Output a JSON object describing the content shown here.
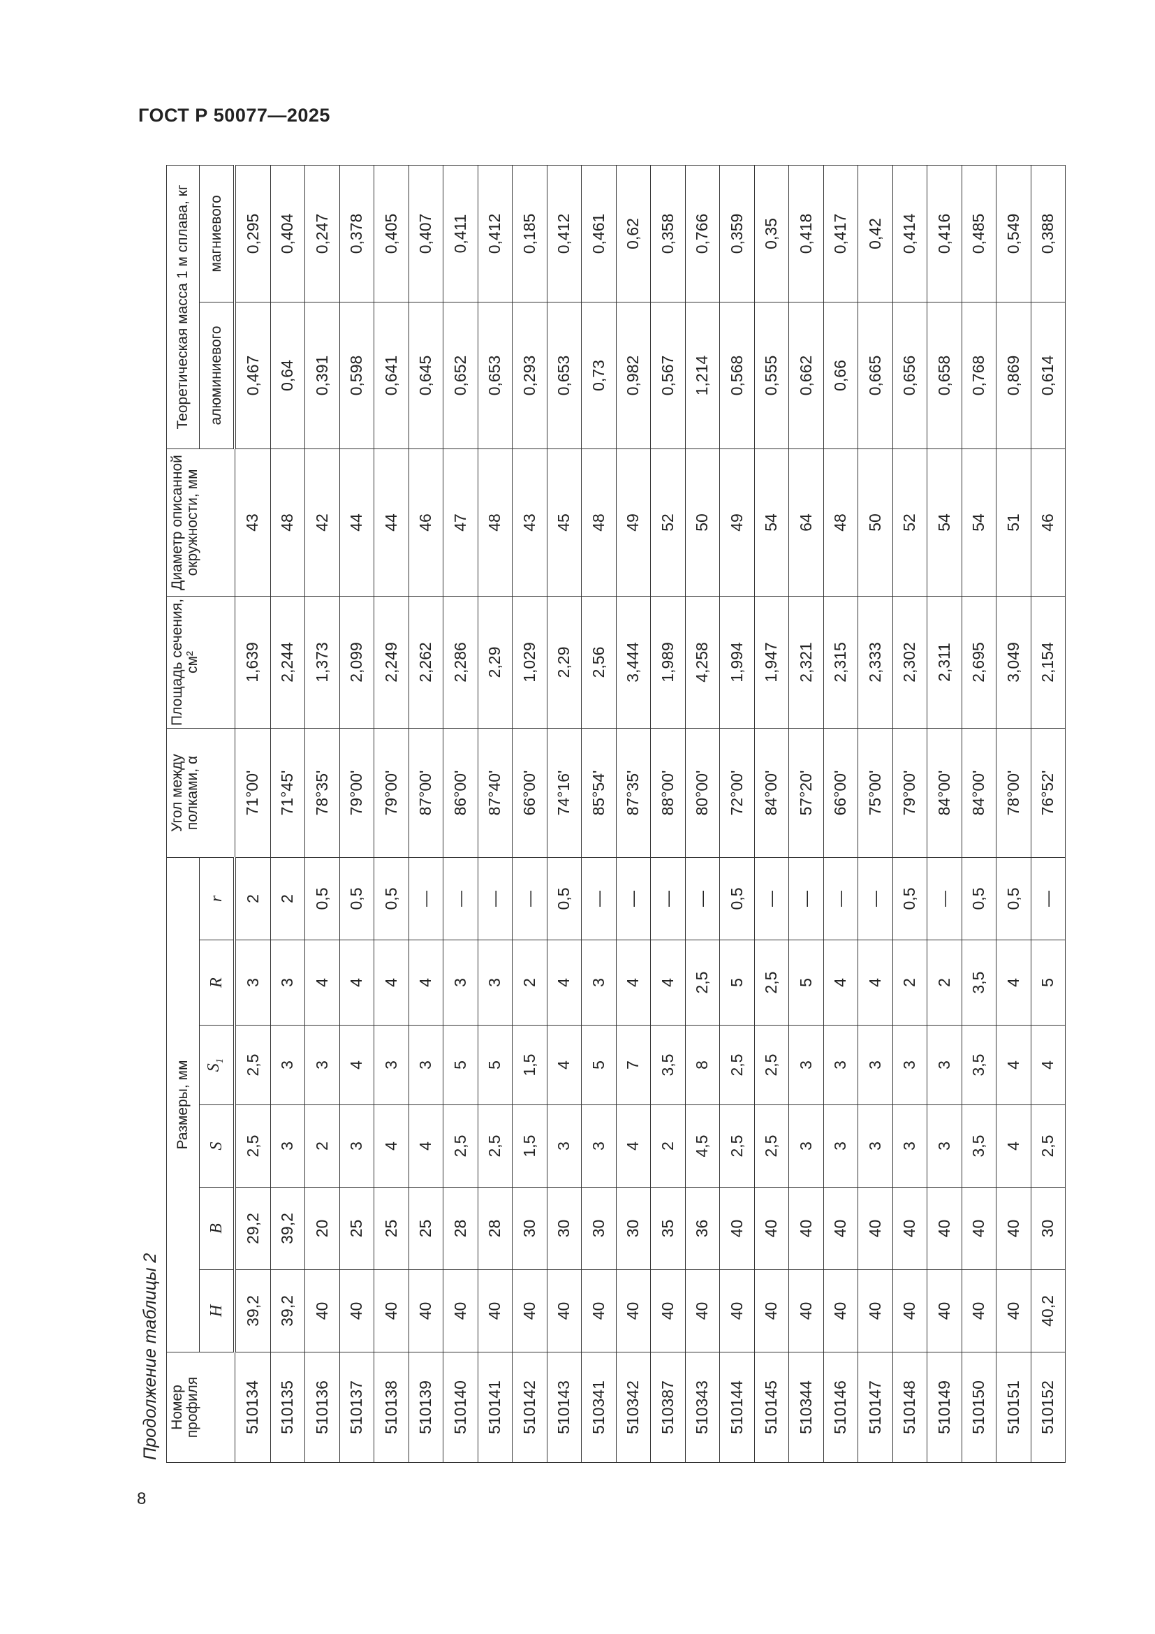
{
  "header": {
    "title": "ГОСТ Р 50077—2025",
    "page_number": "8"
  },
  "caption": "Продолжение таблицы 2",
  "table": {
    "headers": {
      "profile": "Номер профиля",
      "dimensions": "Размеры, мм",
      "H": "H",
      "B": "B",
      "S": "S",
      "S1": "S1",
      "R": "R",
      "r": "r",
      "angle": "Угол между полками, α",
      "area": "Площадь сечения, см²",
      "diameter": "Диаметр описанной окружности, мм",
      "mass": "Теоретическая масса 1 м сплава, кг",
      "aluminum": "алюминиевого",
      "magnesium": "магниевого"
    },
    "rows": [
      [
        "510134",
        "39,2",
        "29,2",
        "2,5",
        "2,5",
        "3",
        "2",
        "71°00'",
        "1,639",
        "43",
        "0,467",
        "0,295"
      ],
      [
        "510135",
        "39,2",
        "39,2",
        "3",
        "3",
        "3",
        "2",
        "71°45'",
        "2,244",
        "48",
        "0,64",
        "0,404"
      ],
      [
        "510136",
        "40",
        "20",
        "2",
        "3",
        "4",
        "0,5",
        "78°35'",
        "1,373",
        "42",
        "0,391",
        "0,247"
      ],
      [
        "510137",
        "40",
        "25",
        "3",
        "4",
        "4",
        "0,5",
        "79°00'",
        "2,099",
        "44",
        "0,598",
        "0,378"
      ],
      [
        "510138",
        "40",
        "25",
        "4",
        "3",
        "4",
        "0,5",
        "79°00'",
        "2,249",
        "44",
        "0,641",
        "0,405"
      ],
      [
        "510139",
        "40",
        "25",
        "4",
        "3",
        "4",
        "—",
        "87°00'",
        "2,262",
        "46",
        "0,645",
        "0,407"
      ],
      [
        "510140",
        "40",
        "28",
        "2,5",
        "5",
        "3",
        "—",
        "86°00'",
        "2,286",
        "47",
        "0,652",
        "0,411"
      ],
      [
        "510141",
        "40",
        "28",
        "2,5",
        "5",
        "3",
        "—",
        "87°40'",
        "2,29",
        "48",
        "0,653",
        "0,412"
      ],
      [
        "510142",
        "40",
        "30",
        "1,5",
        "1,5",
        "2",
        "—",
        "66°00'",
        "1,029",
        "43",
        "0,293",
        "0,185"
      ],
      [
        "510143",
        "40",
        "30",
        "3",
        "4",
        "4",
        "0,5",
        "74°16'",
        "2,29",
        "45",
        "0,653",
        "0,412"
      ],
      [
        "510341",
        "40",
        "30",
        "3",
        "5",
        "3",
        "—",
        "85°54'",
        "2,56",
        "48",
        "0,73",
        "0,461"
      ],
      [
        "510342",
        "40",
        "30",
        "4",
        "7",
        "4",
        "—",
        "87°35'",
        "3,444",
        "49",
        "0,982",
        "0,62"
      ],
      [
        "510387",
        "40",
        "35",
        "2",
        "3,5",
        "4",
        "—",
        "88°00'",
        "1,989",
        "52",
        "0,567",
        "0,358"
      ],
      [
        "510343",
        "40",
        "36",
        "4,5",
        "8",
        "2,5",
        "—",
        "80°00'",
        "4,258",
        "50",
        "1,214",
        "0,766"
      ],
      [
        "510144",
        "40",
        "40",
        "2,5",
        "2,5",
        "5",
        "0,5",
        "72°00'",
        "1,994",
        "49",
        "0,568",
        "0,359"
      ],
      [
        "510145",
        "40",
        "40",
        "2,5",
        "2,5",
        "2,5",
        "—",
        "84°00'",
        "1,947",
        "54",
        "0,555",
        "0,35"
      ],
      [
        "510344",
        "40",
        "40",
        "3",
        "3",
        "5",
        "—",
        "57°20'",
        "2,321",
        "64",
        "0,662",
        "0,418"
      ],
      [
        "510146",
        "40",
        "40",
        "3",
        "3",
        "4",
        "—",
        "66°00'",
        "2,315",
        "48",
        "0,66",
        "0,417"
      ],
      [
        "510147",
        "40",
        "40",
        "3",
        "3",
        "4",
        "—",
        "75°00'",
        "2,333",
        "50",
        "0,665",
        "0,42"
      ],
      [
        "510148",
        "40",
        "40",
        "3",
        "3",
        "2",
        "0,5",
        "79°00'",
        "2,302",
        "52",
        "0,656",
        "0,414"
      ],
      [
        "510149",
        "40",
        "40",
        "3",
        "3",
        "2",
        "—",
        "84°00'",
        "2,311",
        "54",
        "0,658",
        "0,416"
      ],
      [
        "510150",
        "40",
        "40",
        "3,5",
        "3,5",
        "3,5",
        "0,5",
        "84°00'",
        "2,695",
        "54",
        "0,768",
        "0,485"
      ],
      [
        "510151",
        "40",
        "40",
        "4",
        "4",
        "4",
        "0,5",
        "78°00'",
        "3,049",
        "51",
        "0,869",
        "0,549"
      ],
      [
        "510152",
        "40,2",
        "30",
        "2,5",
        "4",
        "5",
        "—",
        "76°52'",
        "2,154",
        "46",
        "0,614",
        "0,388"
      ]
    ]
  }
}
